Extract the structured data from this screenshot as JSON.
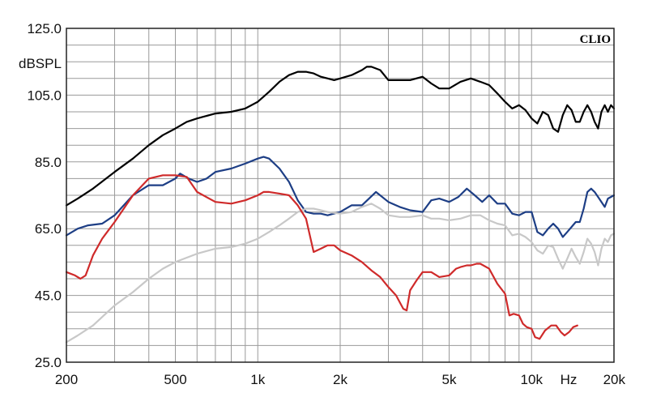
{
  "chart_data": {
    "type": "line",
    "brand": "CLIO",
    "ylabel": "dBSPL",
    "xunit": "Hz",
    "xscale": "log",
    "xlim": [
      200,
      20000
    ],
    "ylim": [
      25,
      125
    ],
    "grid": true,
    "yticks": [
      {
        "value": 25,
        "label": "25.0"
      },
      {
        "value": 45,
        "label": "45.0"
      },
      {
        "value": 65,
        "label": "65.0"
      },
      {
        "value": 85,
        "label": "85.0"
      },
      {
        "value": 105,
        "label": "105.0"
      },
      {
        "value": 125,
        "label": "125.0"
      }
    ],
    "xticks": [
      {
        "value": 200,
        "label": "200"
      },
      {
        "value": 500,
        "label": "500"
      },
      {
        "value": 1000,
        "label": "1k"
      },
      {
        "value": 2000,
        "label": "2k"
      },
      {
        "value": 5000,
        "label": "5k"
      },
      {
        "value": 10000,
        "label": "10k"
      },
      {
        "value": 20000,
        "label": "20k"
      }
    ],
    "series": [
      {
        "color": "#000000",
        "points": [
          [
            200,
            72
          ],
          [
            220,
            74
          ],
          [
            250,
            77
          ],
          [
            300,
            82
          ],
          [
            350,
            86
          ],
          [
            400,
            90
          ],
          [
            450,
            93
          ],
          [
            500,
            95
          ],
          [
            550,
            97
          ],
          [
            600,
            98
          ],
          [
            700,
            99.5
          ],
          [
            800,
            100
          ],
          [
            900,
            101
          ],
          [
            1000,
            103
          ],
          [
            1100,
            106
          ],
          [
            1200,
            109
          ],
          [
            1300,
            111
          ],
          [
            1400,
            112
          ],
          [
            1500,
            112
          ],
          [
            1600,
            111.5
          ],
          [
            1700,
            110.5
          ],
          [
            1800,
            110
          ],
          [
            1900,
            109.5
          ],
          [
            2000,
            110
          ],
          [
            2200,
            111
          ],
          [
            2400,
            112.5
          ],
          [
            2500,
            113.5
          ],
          [
            2600,
            113.5
          ],
          [
            2800,
            112.5
          ],
          [
            3000,
            109.5
          ],
          [
            3300,
            109.5
          ],
          [
            3600,
            109.5
          ],
          [
            4000,
            110.5
          ],
          [
            4300,
            108.5
          ],
          [
            4600,
            107
          ],
          [
            5000,
            107
          ],
          [
            5500,
            109
          ],
          [
            6000,
            110
          ],
          [
            6500,
            109
          ],
          [
            7000,
            108
          ],
          [
            7500,
            105.5
          ],
          [
            8000,
            103
          ],
          [
            8500,
            101
          ],
          [
            9000,
            102
          ],
          [
            9500,
            100.5
          ],
          [
            10000,
            98
          ],
          [
            10500,
            96.5
          ],
          [
            11000,
            100
          ],
          [
            11500,
            99
          ],
          [
            12000,
            95
          ],
          [
            12500,
            94
          ],
          [
            13000,
            99
          ],
          [
            13500,
            102
          ],
          [
            14000,
            100.5
          ],
          [
            14500,
            97
          ],
          [
            15000,
            97
          ],
          [
            15500,
            100
          ],
          [
            16000,
            102
          ],
          [
            16500,
            100
          ],
          [
            17000,
            97
          ],
          [
            17500,
            95
          ],
          [
            18000,
            100
          ],
          [
            18500,
            102
          ],
          [
            19000,
            100
          ],
          [
            19500,
            102
          ],
          [
            20000,
            101
          ]
        ]
      },
      {
        "color": "#1d3e85",
        "points": [
          [
            200,
            63
          ],
          [
            220,
            65
          ],
          [
            240,
            66
          ],
          [
            270,
            66.5
          ],
          [
            300,
            69
          ],
          [
            350,
            75
          ],
          [
            400,
            78
          ],
          [
            450,
            78
          ],
          [
            500,
            80
          ],
          [
            520,
            81.5
          ],
          [
            560,
            80
          ],
          [
            600,
            79
          ],
          [
            650,
            80
          ],
          [
            700,
            82
          ],
          [
            800,
            83
          ],
          [
            900,
            84.5
          ],
          [
            1000,
            86
          ],
          [
            1050,
            86.5
          ],
          [
            1100,
            86
          ],
          [
            1200,
            83
          ],
          [
            1300,
            79
          ],
          [
            1400,
            73.5
          ],
          [
            1500,
            70
          ],
          [
            1600,
            69.5
          ],
          [
            1700,
            69.5
          ],
          [
            1800,
            69
          ],
          [
            2000,
            70
          ],
          [
            2200,
            72
          ],
          [
            2400,
            72
          ],
          [
            2700,
            76
          ],
          [
            3000,
            73
          ],
          [
            3300,
            71.5
          ],
          [
            3600,
            70.5
          ],
          [
            4000,
            70
          ],
          [
            4300,
            73.5
          ],
          [
            4600,
            74
          ],
          [
            5000,
            73
          ],
          [
            5400,
            74.5
          ],
          [
            5800,
            77
          ],
          [
            6200,
            75
          ],
          [
            6600,
            73
          ],
          [
            7000,
            75
          ],
          [
            7500,
            72.5
          ],
          [
            8000,
            72.5
          ],
          [
            8500,
            69.5
          ],
          [
            9000,
            69
          ],
          [
            9500,
            70
          ],
          [
            10000,
            70
          ],
          [
            10500,
            64
          ],
          [
            11000,
            63
          ],
          [
            11500,
            65
          ],
          [
            12000,
            66.5
          ],
          [
            12500,
            65
          ],
          [
            13000,
            62.5
          ],
          [
            13500,
            64
          ],
          [
            14000,
            65.5
          ],
          [
            14500,
            67
          ],
          [
            15000,
            67
          ],
          [
            15500,
            71
          ],
          [
            16000,
            76
          ],
          [
            16500,
            77
          ],
          [
            17000,
            76
          ],
          [
            17500,
            74.5
          ],
          [
            18000,
            73
          ],
          [
            18500,
            71.5
          ],
          [
            19000,
            74
          ],
          [
            20000,
            75
          ]
        ]
      },
      {
        "color": "#c8c8c8",
        "points": [
          [
            200,
            31
          ],
          [
            220,
            33
          ],
          [
            250,
            36
          ],
          [
            300,
            42
          ],
          [
            350,
            46
          ],
          [
            400,
            50
          ],
          [
            450,
            53
          ],
          [
            500,
            55
          ],
          [
            600,
            57.5
          ],
          [
            700,
            59
          ],
          [
            800,
            59.5
          ],
          [
            900,
            60.5
          ],
          [
            1000,
            62
          ],
          [
            1100,
            64
          ],
          [
            1200,
            66
          ],
          [
            1300,
            68
          ],
          [
            1400,
            70
          ],
          [
            1500,
            71
          ],
          [
            1600,
            71
          ],
          [
            1700,
            70.5
          ],
          [
            1800,
            70
          ],
          [
            2000,
            69.5
          ],
          [
            2200,
            70
          ],
          [
            2400,
            71.5
          ],
          [
            2600,
            72.5
          ],
          [
            2800,
            71
          ],
          [
            3000,
            69
          ],
          [
            3300,
            68.5
          ],
          [
            3600,
            68.5
          ],
          [
            4000,
            69
          ],
          [
            4300,
            68
          ],
          [
            4600,
            68
          ],
          [
            5000,
            67.5
          ],
          [
            5500,
            68
          ],
          [
            6000,
            69
          ],
          [
            6500,
            69
          ],
          [
            7000,
            67.5
          ],
          [
            7500,
            66.5
          ],
          [
            8000,
            66
          ],
          [
            8500,
            63
          ],
          [
            9000,
            63.5
          ],
          [
            9500,
            62.5
          ],
          [
            10000,
            61
          ],
          [
            10500,
            58.5
          ],
          [
            11000,
            57.5
          ],
          [
            11500,
            60
          ],
          [
            12000,
            59.5
          ],
          [
            12500,
            56
          ],
          [
            13000,
            53
          ],
          [
            13500,
            56
          ],
          [
            14000,
            59
          ],
          [
            14500,
            56.5
          ],
          [
            15000,
            54.5
          ],
          [
            15500,
            58
          ],
          [
            16000,
            62
          ],
          [
            16500,
            60.5
          ],
          [
            17000,
            58
          ],
          [
            17500,
            54
          ],
          [
            18000,
            59
          ],
          [
            18500,
            62
          ],
          [
            19000,
            61
          ],
          [
            19500,
            63
          ],
          [
            20000,
            63.5
          ]
        ]
      },
      {
        "color": "#cf2a2a",
        "points": [
          [
            200,
            52
          ],
          [
            215,
            51
          ],
          [
            225,
            50
          ],
          [
            235,
            51
          ],
          [
            250,
            57
          ],
          [
            270,
            62
          ],
          [
            300,
            67
          ],
          [
            350,
            75
          ],
          [
            400,
            80
          ],
          [
            450,
            81
          ],
          [
            500,
            81
          ],
          [
            550,
            80.5
          ],
          [
            600,
            76
          ],
          [
            700,
            73
          ],
          [
            800,
            72.5
          ],
          [
            900,
            73.5
          ],
          [
            1000,
            75
          ],
          [
            1050,
            76
          ],
          [
            1100,
            76
          ],
          [
            1200,
            75.5
          ],
          [
            1300,
            75
          ],
          [
            1400,
            72
          ],
          [
            1500,
            68
          ],
          [
            1600,
            58
          ],
          [
            1700,
            59
          ],
          [
            1800,
            60
          ],
          [
            1900,
            60
          ],
          [
            2000,
            58.5
          ],
          [
            2200,
            57
          ],
          [
            2400,
            55
          ],
          [
            2600,
            52.5
          ],
          [
            2800,
            50.5
          ],
          [
            3000,
            47.5
          ],
          [
            3200,
            45
          ],
          [
            3400,
            41
          ],
          [
            3500,
            40.5
          ],
          [
            3600,
            46.5
          ],
          [
            3800,
            49.5
          ],
          [
            4000,
            52
          ],
          [
            4300,
            52
          ],
          [
            4600,
            50.5
          ],
          [
            5000,
            51
          ],
          [
            5300,
            53
          ],
          [
            5500,
            53.5
          ],
          [
            5800,
            54
          ],
          [
            6000,
            54
          ],
          [
            6300,
            54.5
          ],
          [
            6500,
            54.5
          ],
          [
            7000,
            53
          ],
          [
            7500,
            48.5
          ],
          [
            8000,
            45.5
          ],
          [
            8300,
            39
          ],
          [
            8600,
            39.5
          ],
          [
            9000,
            39
          ],
          [
            9300,
            36.5
          ],
          [
            9600,
            35.5
          ],
          [
            10000,
            35
          ],
          [
            10300,
            32.5
          ],
          [
            10700,
            32
          ],
          [
            11200,
            34.5
          ],
          [
            11800,
            36
          ],
          [
            12300,
            36
          ],
          [
            12800,
            34
          ],
          [
            13200,
            33
          ],
          [
            13700,
            34
          ],
          [
            14200,
            35.5
          ],
          [
            14700,
            36
          ]
        ]
      }
    ]
  }
}
